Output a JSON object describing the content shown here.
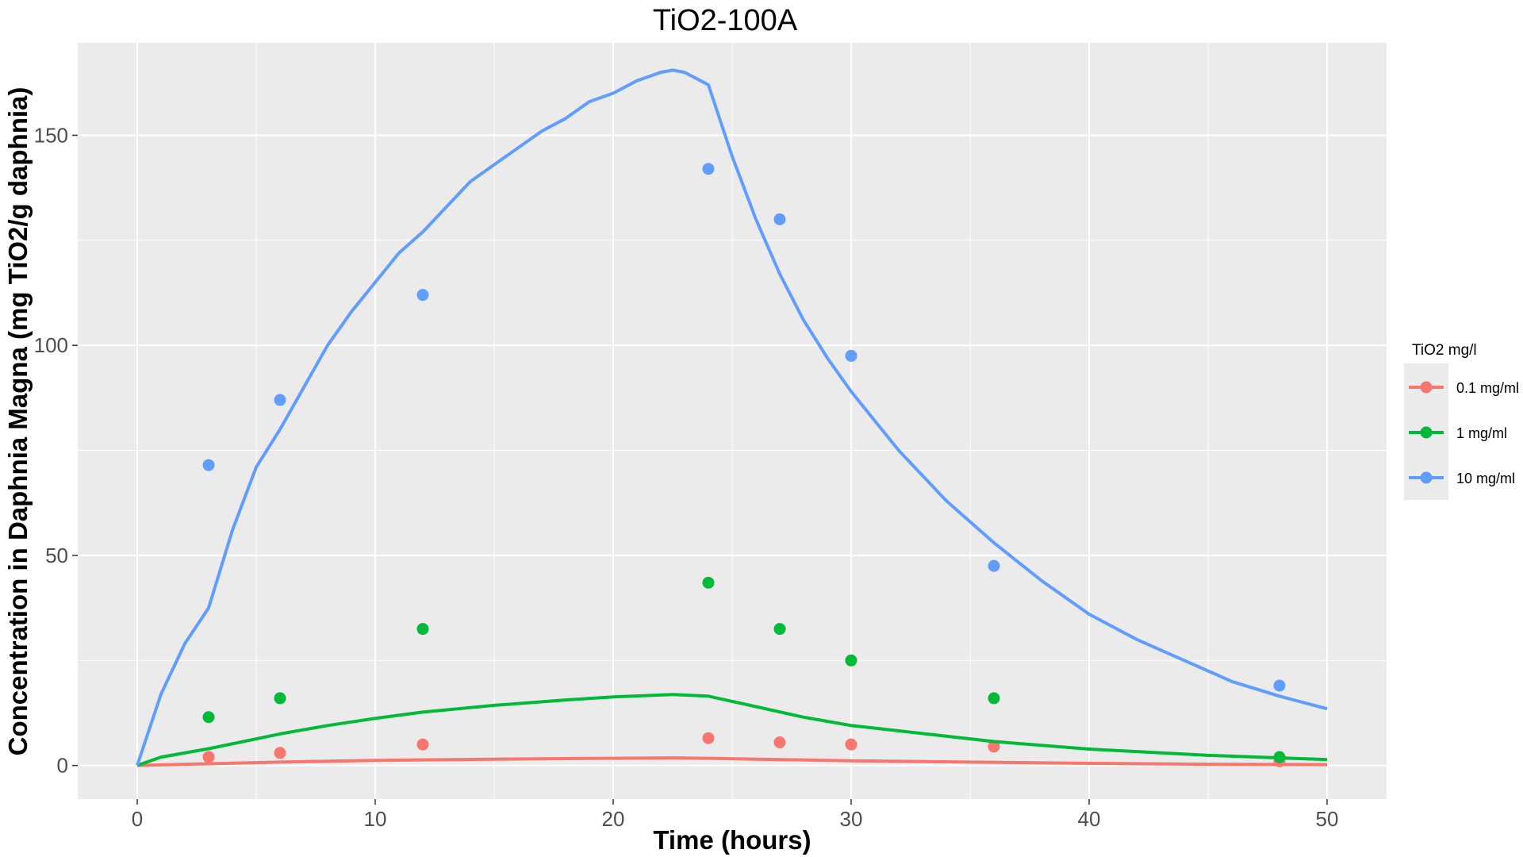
{
  "chart_data": {
    "type": "line",
    "title": "TiO2-100A",
    "xlabel": "Time (hours)",
    "ylabel": "Concentration in Daphnia Magna (mg TiO2/g daphnia)",
    "xlim": [
      -2.5,
      52.5
    ],
    "ylim": [
      -8,
      172
    ],
    "x_ticks": [
      0,
      10,
      20,
      30,
      40,
      50
    ],
    "y_ticks": [
      0,
      50,
      100,
      150
    ],
    "grid": true,
    "legend": {
      "title": "TiO2 mg/l",
      "position": "right"
    },
    "series": [
      {
        "name": "0.1 mg/ml",
        "color": "#F8766D",
        "points": {
          "x": [
            3,
            6,
            12,
            24,
            27,
            30,
            36,
            48
          ],
          "y": [
            2,
            3,
            5,
            6.5,
            5.5,
            5,
            4.5,
            1
          ]
        },
        "curve": {
          "x": [
            0,
            3,
            6,
            10,
            15,
            20,
            22.5,
            24,
            27,
            30,
            35,
            40,
            45,
            50
          ],
          "y": [
            0,
            0.4,
            0.8,
            1.2,
            1.5,
            1.7,
            1.8,
            1.7,
            1.4,
            1.1,
            0.8,
            0.5,
            0.3,
            0.2
          ]
        }
      },
      {
        "name": "1 mg/ml",
        "color": "#00BA38",
        "points": {
          "x": [
            3,
            6,
            12,
            24,
            27,
            30,
            36,
            48
          ],
          "y": [
            11.5,
            16,
            32.5,
            43.5,
            32.5,
            25,
            16,
            2
          ]
        },
        "curve": {
          "x": [
            0,
            1,
            3,
            6,
            8,
            10,
            12,
            15,
            18,
            20,
            22.5,
            24,
            26,
            28,
            30,
            33,
            36,
            40,
            45,
            50
          ],
          "y": [
            0,
            2,
            4,
            7.5,
            9.5,
            11.2,
            12.7,
            14.3,
            15.6,
            16.3,
            16.9,
            16.5,
            14,
            11.5,
            9.5,
            7.6,
            5.7,
            3.9,
            2.4,
            1.4
          ]
        }
      },
      {
        "name": "10 mg/ml",
        "color": "#619CFF",
        "points": {
          "x": [
            3,
            6,
            12,
            24,
            27,
            30,
            36,
            48
          ],
          "y": [
            71.5,
            87,
            112,
            142,
            130,
            97.5,
            47.5,
            19
          ]
        },
        "curve": {
          "x": [
            0,
            1,
            2,
            3,
            4,
            5,
            6,
            7,
            8,
            9,
            10,
            11,
            12,
            13,
            14,
            15,
            16,
            17,
            18,
            19,
            20,
            21,
            22,
            22.5,
            23,
            24,
            25,
            26,
            27,
            28,
            29,
            30,
            32,
            34,
            36,
            38,
            40,
            42,
            44,
            46,
            48,
            50
          ],
          "y": [
            0,
            17,
            29,
            37.5,
            56,
            71,
            80,
            90,
            100,
            108,
            115,
            122,
            127,
            133,
            139,
            143,
            147,
            151,
            154,
            158,
            160,
            163,
            165,
            165.5,
            165,
            162,
            145,
            130,
            117,
            106,
            97,
            89,
            75,
            63,
            53,
            44,
            36,
            30,
            25,
            20,
            16.5,
            13.5
          ]
        }
      }
    ]
  }
}
